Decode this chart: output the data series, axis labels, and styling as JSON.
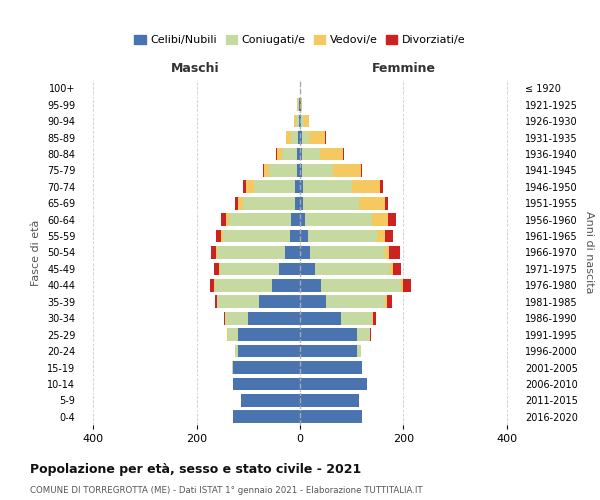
{
  "age_groups": [
    "0-4",
    "5-9",
    "10-14",
    "15-19",
    "20-24",
    "25-29",
    "30-34",
    "35-39",
    "40-44",
    "45-49",
    "50-54",
    "55-59",
    "60-64",
    "65-69",
    "70-74",
    "75-79",
    "80-84",
    "85-89",
    "90-94",
    "95-99",
    "100+"
  ],
  "birth_years": [
    "2016-2020",
    "2011-2015",
    "2006-2010",
    "2001-2005",
    "1996-2000",
    "1991-1995",
    "1986-1990",
    "1981-1985",
    "1976-1980",
    "1971-1975",
    "1966-1970",
    "1961-1965",
    "1956-1960",
    "1951-1955",
    "1946-1950",
    "1941-1945",
    "1936-1940",
    "1931-1935",
    "1926-1930",
    "1921-1925",
    "≤ 1920"
  ],
  "males": {
    "celibi": [
      130,
      115,
      130,
      130,
      120,
      120,
      100,
      80,
      55,
      40,
      30,
      20,
      18,
      10,
      10,
      5,
      5,
      3,
      2,
      2,
      0
    ],
    "coniugati": [
      0,
      0,
      0,
      2,
      5,
      20,
      45,
      80,
      110,
      115,
      130,
      130,
      120,
      100,
      80,
      55,
      30,
      15,
      5,
      2,
      0
    ],
    "vedovi": [
      0,
      0,
      0,
      0,
      0,
      2,
      0,
      0,
      2,
      2,
      2,
      3,
      5,
      10,
      15,
      10,
      10,
      10,
      5,
      2,
      0
    ],
    "divorziati": [
      0,
      0,
      0,
      0,
      0,
      0,
      2,
      5,
      8,
      10,
      10,
      10,
      10,
      5,
      5,
      2,
      2,
      0,
      0,
      0,
      0
    ]
  },
  "females": {
    "nubili": [
      120,
      115,
      130,
      120,
      110,
      110,
      80,
      50,
      40,
      30,
      20,
      15,
      10,
      5,
      5,
      3,
      3,
      3,
      2,
      2,
      0
    ],
    "coniugate": [
      0,
      0,
      0,
      0,
      8,
      25,
      60,
      115,
      155,
      145,
      145,
      135,
      130,
      110,
      95,
      60,
      35,
      15,
      5,
      0,
      0
    ],
    "vedove": [
      0,
      0,
      0,
      0,
      0,
      0,
      2,
      3,
      5,
      5,
      8,
      15,
      30,
      50,
      55,
      55,
      45,
      30,
      10,
      2,
      0
    ],
    "divorziate": [
      0,
      0,
      0,
      0,
      0,
      2,
      5,
      10,
      15,
      15,
      20,
      15,
      15,
      5,
      5,
      3,
      2,
      2,
      0,
      0,
      0
    ]
  },
  "colors": {
    "celibi": "#4a74b0",
    "coniugati": "#c5d9a0",
    "vedovi": "#f5c860",
    "divorziati": "#cc2222"
  },
  "xlim": 430,
  "title": "Popolazione per età, sesso e stato civile - 2021",
  "subtitle": "COMUNE DI TORREGROTTA (ME) - Dati ISTAT 1° gennaio 2021 - Elaborazione TUTTITALIA.IT",
  "xlabel_left": "Maschi",
  "xlabel_right": "Femmine",
  "ylabel_left": "Fasce di età",
  "ylabel_right": "Anni di nascita",
  "legend_labels": [
    "Celibi/Nubili",
    "Coniugati/e",
    "Vedovi/e",
    "Divorziati/e"
  ],
  "background_color": "#ffffff",
  "grid_color": "#cccccc"
}
